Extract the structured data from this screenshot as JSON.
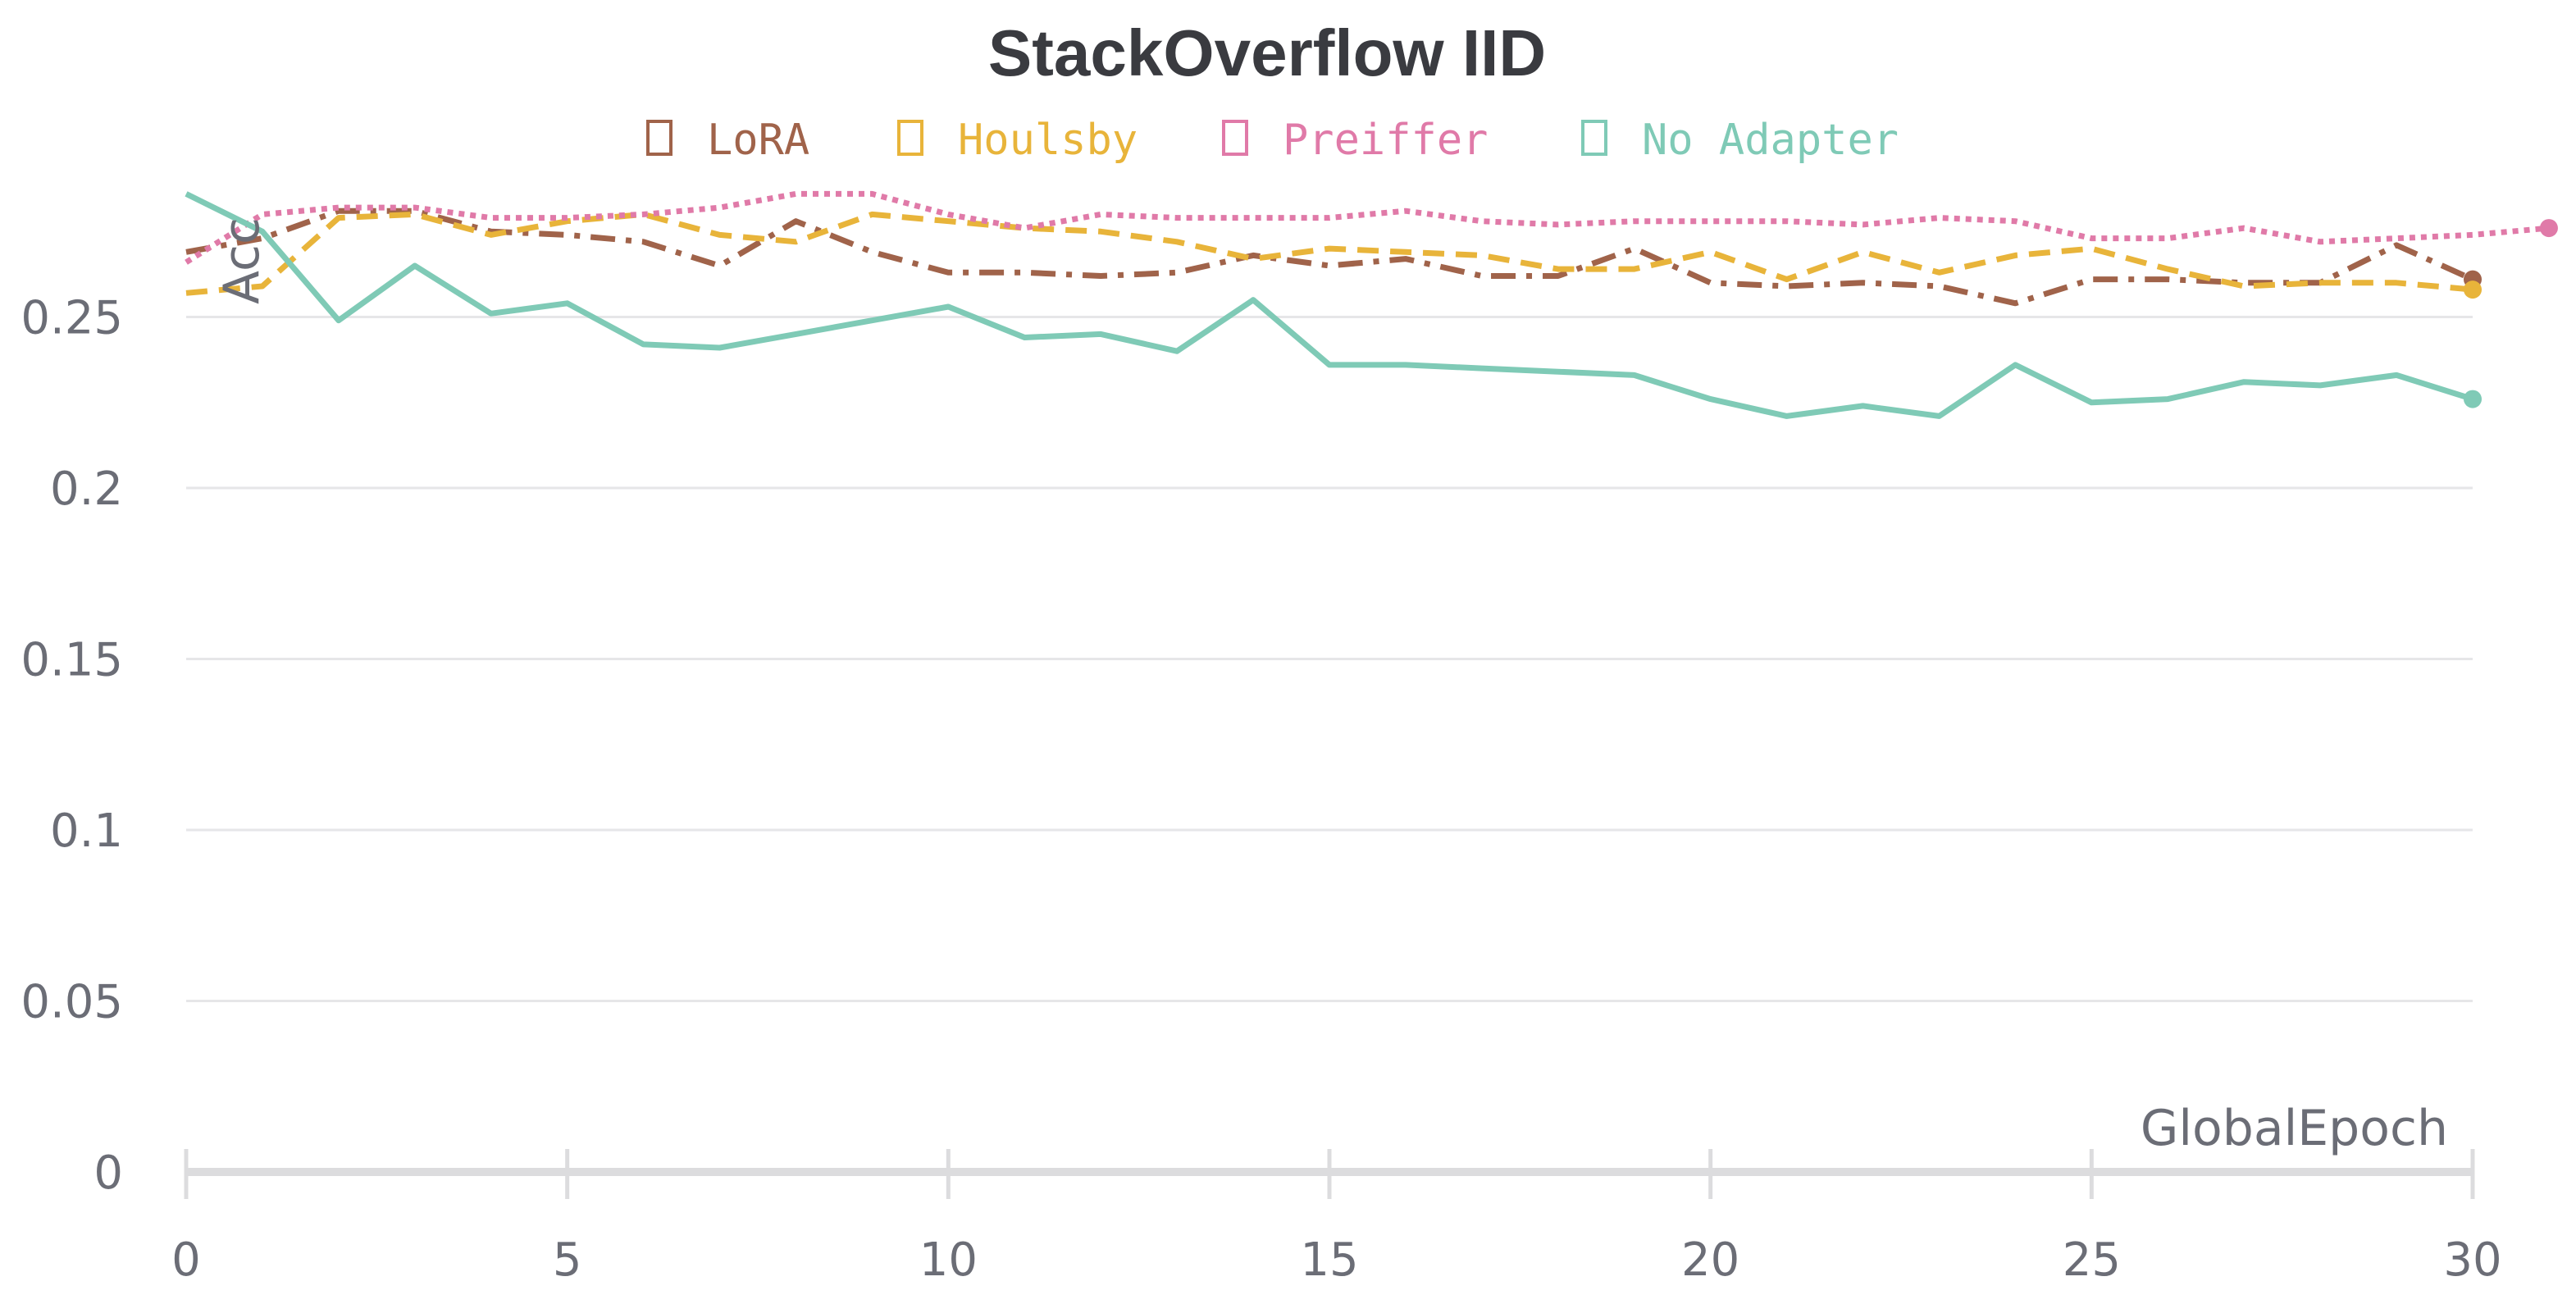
{
  "chart_data": {
    "type": "line",
    "title": "StackOverflow IID",
    "xlabel": "GlobalEpoch",
    "ylabel": "Acc",
    "xlim": [
      0,
      30
    ],
    "ylim": [
      0,
      0.28
    ],
    "xticks": [
      "0",
      "5",
      "10",
      "15",
      "20",
      "25",
      "30"
    ],
    "yticks": [
      "0",
      "0.05",
      "0.1",
      "0.15",
      "0.2",
      "0.25"
    ],
    "legend_position": "top-center",
    "series": [
      {
        "name": "LoRA",
        "color": "#a0634a",
        "dash": "dash-dot",
        "x": [
          0,
          1,
          2,
          3,
          4,
          5,
          6,
          7,
          8,
          9,
          10,
          11,
          12,
          13,
          14,
          15,
          16,
          17,
          18,
          19,
          20,
          21,
          22,
          23,
          24,
          25,
          26,
          27,
          28,
          29,
          30
        ],
        "values": [
          0.269,
          0.273,
          0.281,
          0.281,
          0.275,
          0.274,
          0.272,
          0.265,
          0.278,
          0.269,
          0.263,
          0.263,
          0.262,
          0.263,
          0.268,
          0.265,
          0.267,
          0.262,
          0.262,
          0.27,
          0.26,
          0.259,
          0.26,
          0.259,
          0.254,
          0.261,
          0.261,
          0.26,
          0.26,
          0.271,
          0.261
        ]
      },
      {
        "name": "Houlsby",
        "color": "#e8b43a",
        "dash": "dashed",
        "x": [
          0,
          1,
          2,
          3,
          4,
          5,
          6,
          7,
          8,
          9,
          10,
          11,
          12,
          13,
          14,
          15,
          16,
          17,
          18,
          19,
          20,
          21,
          22,
          23,
          24,
          25,
          26,
          27,
          28,
          29,
          30
        ],
        "values": [
          0.257,
          0.259,
          0.279,
          0.28,
          0.274,
          0.278,
          0.28,
          0.274,
          0.272,
          0.28,
          0.278,
          0.276,
          0.275,
          0.272,
          0.267,
          0.27,
          0.269,
          0.268,
          0.264,
          0.264,
          0.269,
          0.261,
          0.269,
          0.263,
          0.268,
          0.27,
          0.264,
          0.259,
          0.26,
          0.26,
          0.258
        ]
      },
      {
        "name": "Preiffer",
        "color": "#e07aa8",
        "dash": "dotted",
        "x": [
          0,
          1,
          2,
          3,
          4,
          5,
          6,
          7,
          8,
          9,
          10,
          11,
          12,
          13,
          14,
          15,
          16,
          17,
          18,
          19,
          20,
          21,
          22,
          23,
          24,
          25,
          26,
          27,
          28,
          29,
          30,
          31
        ],
        "values": [
          0.266,
          0.28,
          0.282,
          0.282,
          0.279,
          0.279,
          0.28,
          0.282,
          0.286,
          0.286,
          0.28,
          0.276,
          0.28,
          0.279,
          0.279,
          0.279,
          0.281,
          0.278,
          0.277,
          0.278,
          0.278,
          0.278,
          0.277,
          0.279,
          0.278,
          0.273,
          0.273,
          0.276,
          0.272,
          0.273,
          0.274,
          0.276
        ]
      },
      {
        "name": "No Adapter",
        "color": "#7fcab6",
        "dash": "solid",
        "x": [
          0,
          1,
          2,
          3,
          4,
          5,
          6,
          7,
          8,
          9,
          10,
          11,
          12,
          13,
          14,
          15,
          16,
          17,
          18,
          19,
          20,
          21,
          22,
          23,
          24,
          25,
          26,
          27,
          28,
          29,
          30
        ],
        "values": [
          0.286,
          0.275,
          0.249,
          0.265,
          0.251,
          0.254,
          0.242,
          0.241,
          0.245,
          0.249,
          0.253,
          0.244,
          0.245,
          0.24,
          0.255,
          0.236,
          0.236,
          0.235,
          0.234,
          0.233,
          0.226,
          0.221,
          0.224,
          0.221,
          0.236,
          0.225,
          0.226,
          0.231,
          0.23,
          0.233,
          0.226
        ]
      }
    ]
  }
}
